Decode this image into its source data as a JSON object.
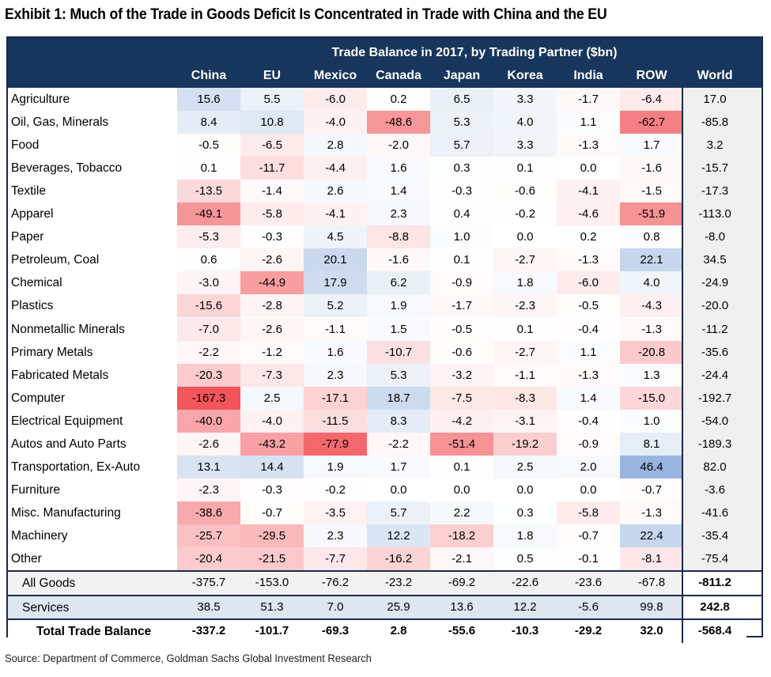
{
  "title": "Exhibit 1: Much of the Trade in Goods Deficit Is Concentrated in Trade with China and the EU",
  "source": "Source: Department of Commerce, Goldman Sachs Global Investment Research",
  "chart_data": {
    "type": "table",
    "title": "Trade Balance in 2017, by Trading Partner ($bn)",
    "columns": [
      "China",
      "EU",
      "Mexico",
      "Canada",
      "Japan",
      "Korea",
      "India",
      "ROW",
      "World"
    ],
    "rows": [
      {
        "label": "Agriculture",
        "values": [
          "15.6",
          "5.5",
          "-6.0",
          "0.2",
          "6.5",
          "3.3",
          "-1.7",
          "-6.4",
          "17.0"
        ]
      },
      {
        "label": "Oil, Gas, Minerals",
        "values": [
          "8.4",
          "10.8",
          "-4.0",
          "-48.6",
          "5.3",
          "4.0",
          "1.1",
          "-62.7",
          "-85.8"
        ]
      },
      {
        "label": "Food",
        "values": [
          "-0.5",
          "-6.5",
          "2.8",
          "-2.0",
          "5.7",
          "3.3",
          "-1.3",
          "1.7",
          "3.2"
        ]
      },
      {
        "label": "Beverages, Tobacco",
        "values": [
          "0.1",
          "-11.7",
          "-4.4",
          "1.6",
          "0.3",
          "0.1",
          "0.0",
          "-1.6",
          "-15.7"
        ]
      },
      {
        "label": "Textile",
        "values": [
          "-13.5",
          "-1.4",
          "2.6",
          "1.4",
          "-0.3",
          "-0.6",
          "-4.1",
          "-1.5",
          "-17.3"
        ]
      },
      {
        "label": "Apparel",
        "values": [
          "-49.1",
          "-5.8",
          "-4.1",
          "2.3",
          "0.4",
          "-0.2",
          "-4.6",
          "-51.9",
          "-113.0"
        ]
      },
      {
        "label": "Paper",
        "values": [
          "-5.3",
          "-0.3",
          "4.5",
          "-8.8",
          "1.0",
          "0.0",
          "0.2",
          "0.8",
          "-8.0"
        ]
      },
      {
        "label": "Petroleum, Coal",
        "values": [
          "0.6",
          "-2.6",
          "20.1",
          "-1.6",
          "0.1",
          "-2.7",
          "-1.3",
          "22.1",
          "34.5"
        ]
      },
      {
        "label": "Chemical",
        "values": [
          "-3.0",
          "-44.9",
          "17.9",
          "6.2",
          "-0.9",
          "1.8",
          "-6.0",
          "4.0",
          "-24.9"
        ]
      },
      {
        "label": "Plastics",
        "values": [
          "-15.6",
          "-2.8",
          "5.2",
          "1.9",
          "-1.7",
          "-2.3",
          "-0.5",
          "-4.3",
          "-20.0"
        ]
      },
      {
        "label": "Nonmetallic Minerals",
        "values": [
          "-7.0",
          "-2.6",
          "-1.1",
          "1.5",
          "-0.5",
          "0.1",
          "-0.4",
          "-1.3",
          "-11.2"
        ]
      },
      {
        "label": "Primary Metals",
        "values": [
          "-2.2",
          "-1.2",
          "1.6",
          "-10.7",
          "-0.6",
          "-2.7",
          "1.1",
          "-20.8",
          "-35.6"
        ]
      },
      {
        "label": "Fabricated Metals",
        "values": [
          "-20.3",
          "-7.3",
          "2.3",
          "5.3",
          "-3.2",
          "-1.1",
          "-1.3",
          "1.3",
          "-24.4"
        ]
      },
      {
        "label": "Computer",
        "values": [
          "-167.3",
          "2.5",
          "-17.1",
          "18.7",
          "-7.5",
          "-8.3",
          "1.4",
          "-15.0",
          "-192.7"
        ]
      },
      {
        "label": "Electrical Equipment",
        "values": [
          "-40.0",
          "-4.0",
          "-11.5",
          "8.3",
          "-4.2",
          "-3.1",
          "-0.4",
          "1.0",
          "-54.0"
        ]
      },
      {
        "label": "Autos and Auto Parts",
        "values": [
          "-2.6",
          "-43.2",
          "-77.9",
          "-2.2",
          "-51.4",
          "-19.2",
          "-0.9",
          "8.1",
          "-189.3"
        ]
      },
      {
        "label": "Transportation, Ex-Auto",
        "values": [
          "13.1",
          "14.4",
          "1.9",
          "1.7",
          "0.1",
          "2.5",
          "2.0",
          "46.4",
          "82.0"
        ]
      },
      {
        "label": "Furniture",
        "values": [
          "-2.3",
          "-0.3",
          "-0.2",
          "0.0",
          "0.0",
          "0.0",
          "0.0",
          "-0.7",
          "-3.6"
        ]
      },
      {
        "label": "Misc. Manufacturing",
        "values": [
          "-38.6",
          "-0.7",
          "-3.5",
          "5.7",
          "2.2",
          "0.3",
          "-5.8",
          "-1.3",
          "-41.6"
        ]
      },
      {
        "label": "Machinery",
        "values": [
          "-25.7",
          "-29.5",
          "2.3",
          "12.2",
          "-18.2",
          "1.8",
          "-0.7",
          "22.4",
          "-35.4"
        ]
      },
      {
        "label": "Other",
        "values": [
          "-20.4",
          "-21.5",
          "-7.7",
          "-16.2",
          "-2.1",
          "0.5",
          "-0.1",
          "-8.1",
          "-75.4"
        ]
      }
    ],
    "aggregates": [
      {
        "label": "All Goods",
        "values": [
          "-375.7",
          "-153.0",
          "-76.2",
          "-23.2",
          "-69.2",
          "-22.6",
          "-23.6",
          "-67.8",
          "-811.2"
        ]
      },
      {
        "label": "Services",
        "values": [
          "38.5",
          "51.3",
          "7.0",
          "25.9",
          "13.6",
          "12.2",
          "-5.6",
          "99.8",
          "242.8"
        ]
      },
      {
        "label": "Total Trade Balance",
        "values": [
          "-337.2",
          "-101.7",
          "-69.3",
          "2.8",
          "-55.6",
          "-10.3",
          "-29.2",
          "32.0",
          "-568.4"
        ]
      }
    ],
    "color_scale": {
      "negative": "#f2555a",
      "positive": "#4f81c7",
      "neutral": "#ffffff"
    }
  }
}
